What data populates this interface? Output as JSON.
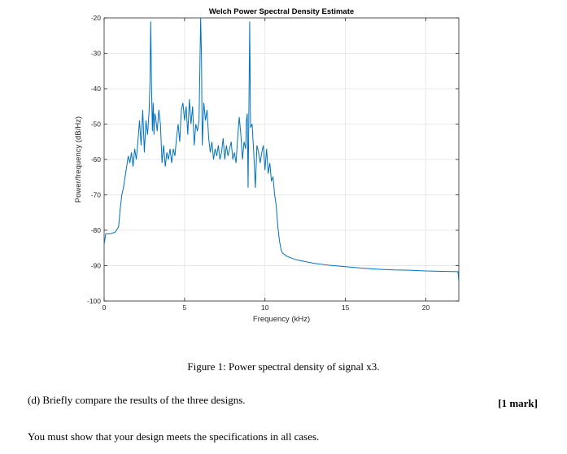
{
  "chart_data": {
    "type": "line",
    "title": "Welch Power Spectral Density Estimate",
    "xlabel": "Frequency (kHz)",
    "ylabel": "Power/frequency (dB/Hz)",
    "xlim": [
      0,
      22.05
    ],
    "ylim": [
      -100,
      -20
    ],
    "xticks": [
      0,
      5,
      10,
      15,
      20
    ],
    "yticks": [
      -20,
      -30,
      -40,
      -50,
      -60,
      -70,
      -80,
      -90,
      -100
    ],
    "grid": true,
    "line_color": "#0072BD",
    "series": [
      {
        "x": [
          0,
          0.1,
          0.4,
          0.7,
          0.9,
          1.0,
          1.1,
          1.2,
          1.3,
          1.4,
          1.5,
          1.6,
          1.7,
          1.8,
          1.9,
          2.0,
          2.1,
          2.2,
          2.3,
          2.4,
          2.5,
          2.6,
          2.7,
          2.8,
          2.85,
          2.9,
          2.95,
          3.0,
          3.05,
          3.1,
          3.15,
          3.2,
          3.3,
          3.4,
          3.5,
          3.6,
          3.7,
          3.8,
          3.9,
          4.0,
          4.1,
          4.2,
          4.3,
          4.4,
          4.5,
          4.6,
          4.7,
          4.8,
          4.9,
          5.0,
          5.1,
          5.2,
          5.3,
          5.4,
          5.5,
          5.6,
          5.7,
          5.8,
          5.9,
          5.95,
          6.0,
          6.05,
          6.1,
          6.2,
          6.3,
          6.4,
          6.5,
          6.6,
          6.7,
          6.8,
          6.9,
          7.0,
          7.1,
          7.2,
          7.3,
          7.4,
          7.5,
          7.6,
          7.7,
          7.8,
          7.9,
          8.0,
          8.1,
          8.2,
          8.3,
          8.4,
          8.5,
          8.6,
          8.7,
          8.8,
          8.85,
          8.9,
          8.95,
          9.0,
          9.05,
          9.1,
          9.2,
          9.3,
          9.4,
          9.5,
          9.6,
          9.7,
          9.8,
          9.9,
          10.0,
          10.1,
          10.2,
          10.3,
          10.4,
          10.5,
          10.6,
          10.7,
          10.8,
          10.9,
          11.0,
          11.1,
          11.2,
          11.3,
          11.5,
          12,
          13,
          14,
          15,
          16,
          17,
          18,
          19,
          20,
          21,
          22,
          22.05
        ],
        "y": [
          -84,
          -81,
          -81,
          -80.5,
          -79,
          -74,
          -70,
          -68,
          -65,
          -62,
          -59,
          -61,
          -58,
          -62,
          -57,
          -60,
          -55,
          -49,
          -56,
          -46,
          -58,
          -49,
          -53,
          -46,
          -38,
          -21,
          -40,
          -52,
          -44,
          -53,
          -47,
          -48,
          -52,
          -46,
          -50,
          -61,
          -56,
          -62,
          -58,
          -60,
          -57,
          -61,
          -57,
          -59,
          -54,
          -50,
          -55,
          -46,
          -44,
          -49,
          -45,
          -53,
          -43,
          -50,
          -45,
          -56,
          -50,
          -52,
          -49,
          -35,
          -13,
          -30,
          -56,
          -44,
          -49,
          -46,
          -54,
          -58,
          -55,
          -60,
          -57,
          -59,
          -56,
          -60,
          -58,
          -54,
          -60,
          -56,
          -59,
          -57,
          -55,
          -60,
          -58,
          -61,
          -54,
          -48,
          -53,
          -60,
          -55,
          -57,
          -49,
          -47,
          -68,
          -46,
          -21,
          -51,
          -50,
          -58,
          -68,
          -56,
          -58,
          -61,
          -58,
          -56,
          -63,
          -57,
          -64,
          -61,
          -66,
          -65,
          -70,
          -73,
          -79,
          -83,
          -85.5,
          -86.5,
          -86.8,
          -87.2,
          -87.6,
          -88.4,
          -89.3,
          -89.9,
          -90.3,
          -90.7,
          -91.0,
          -91.2,
          -91.3,
          -91.5,
          -91.6,
          -91.7,
          -94.5
        ]
      }
    ]
  },
  "text": {
    "caption": "Figure 1:  Power spectral density of signal x3.",
    "question": "(d) Briefly compare the results of the three designs.",
    "marks": "[1 mark]",
    "instruction": "You must show that your design meets the specifications in all cases."
  }
}
